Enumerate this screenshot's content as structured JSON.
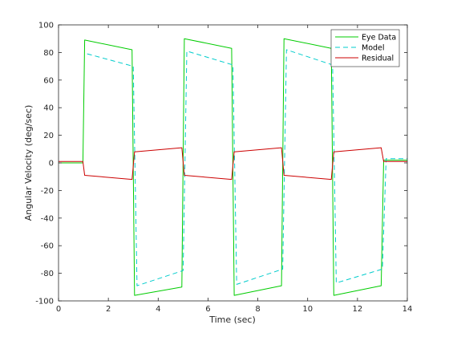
{
  "chart_data": {
    "type": "line",
    "title": "",
    "xlabel": "Time (sec)",
    "ylabel": "Angular  Velocity  (deg/sec)",
    "xlim": [
      0,
      14
    ],
    "ylim": [
      -100,
      100
    ],
    "xticks": [
      0,
      2,
      4,
      6,
      8,
      10,
      12,
      14
    ],
    "yticks": [
      -100,
      -80,
      -60,
      -40,
      -20,
      0,
      20,
      40,
      60,
      80,
      100
    ],
    "grid": false,
    "legend_position": "top-right",
    "series": [
      {
        "name": "Eye Data",
        "color": "#00cc00",
        "style": "solid",
        "x": [
          0,
          0.98,
          1.05,
          2.95,
          3.05,
          4.95,
          5.05,
          6.95,
          7.05,
          8.95,
          9.05,
          10.95,
          11.05,
          12.95,
          13.05,
          14
        ],
        "y": [
          0,
          0,
          89,
          82,
          -96,
          -90,
          90,
          83,
          -96,
          -89,
          90,
          83,
          -96,
          -89,
          2,
          2
        ]
      },
      {
        "name": "Model",
        "color": "#00cccc",
        "style": "dashed",
        "x": [
          1.15,
          3.0,
          3.15,
          5.0,
          5.15,
          7.0,
          7.15,
          9.0,
          9.15,
          11.0,
          11.15,
          13.0,
          13.15,
          14
        ],
        "y": [
          79,
          70,
          -89,
          -78,
          81,
          71,
          -88,
          -77,
          82,
          71,
          -87,
          -77,
          3,
          3
        ]
      },
      {
        "name": "Residual",
        "color": "#cc0000",
        "style": "solid",
        "x": [
          0,
          0.98,
          1.05,
          2.95,
          3.05,
          4.95,
          5.05,
          6.95,
          7.05,
          8.95,
          9.05,
          10.95,
          11.05,
          12.95,
          13.05,
          14
        ],
        "y": [
          1,
          1,
          -9,
          -12,
          8,
          11,
          -9,
          -12,
          8,
          11,
          -9,
          -12,
          8,
          11,
          1,
          1
        ]
      }
    ]
  }
}
